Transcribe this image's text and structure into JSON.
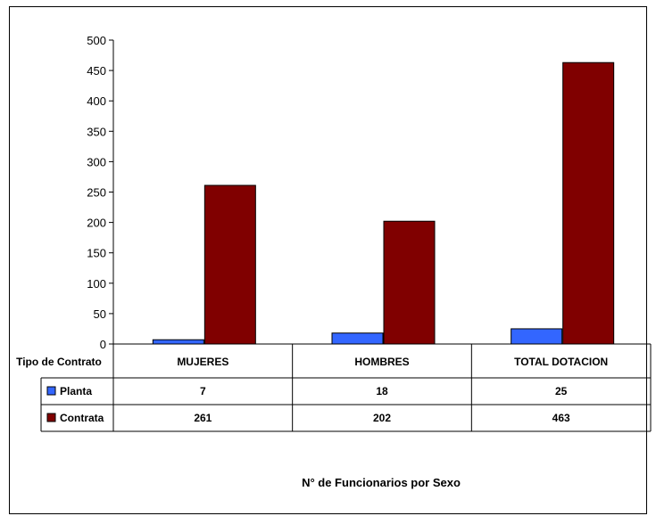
{
  "chart_data": {
    "type": "bar",
    "title": "N° de Funcionarios por Sexo",
    "table_header": "Tipo de Contrato",
    "categories": [
      "MUJERES",
      "HOMBRES",
      "TOTAL DOTACION"
    ],
    "series": [
      {
        "name": "Planta",
        "values": [
          7,
          18,
          25
        ],
        "color": "#3366ff"
      },
      {
        "name": "Contrata",
        "values": [
          261,
          202,
          463
        ],
        "color": "#800000"
      }
    ],
    "ylim": [
      0,
      500
    ],
    "yticks": [
      0,
      50,
      100,
      150,
      200,
      250,
      300,
      350,
      400,
      450,
      500
    ],
    "grid": false,
    "legend_placement": "data-table"
  }
}
